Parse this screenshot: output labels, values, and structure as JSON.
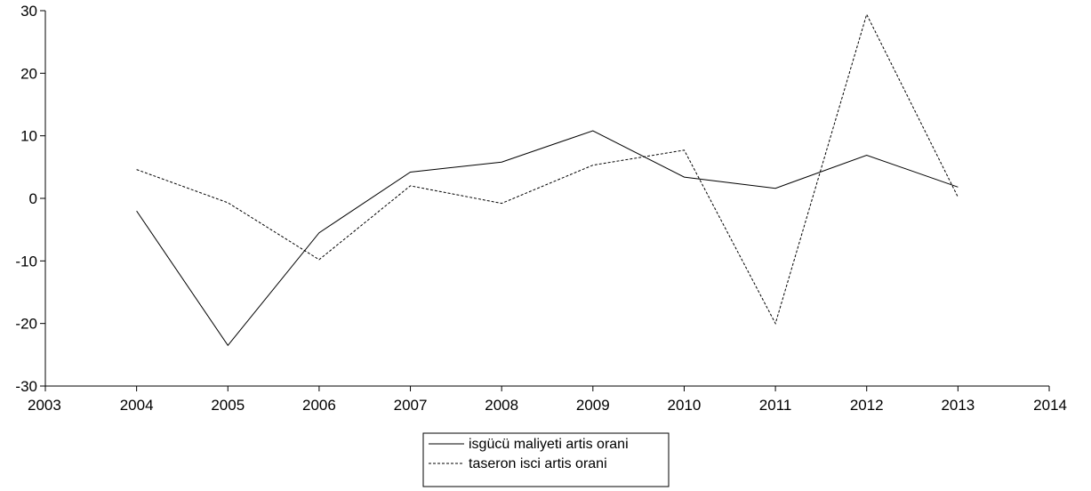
{
  "chart_data": {
    "type": "line",
    "title": "",
    "xlabel": "",
    "ylabel": "",
    "xlim": [
      2003,
      2014
    ],
    "ylim": [
      -30,
      30
    ],
    "x_ticks": [
      2003,
      2004,
      2005,
      2006,
      2007,
      2008,
      2009,
      2010,
      2011,
      2012,
      2013,
      2014
    ],
    "y_ticks": [
      -30,
      -20,
      -10,
      0,
      10,
      20,
      30
    ],
    "grid": false,
    "legend_position": "bottom-center",
    "series": [
      {
        "name": "isgücü maliyeti artis orani",
        "style": "solid",
        "color": "#000000",
        "x": [
          2004,
          2005,
          2006,
          2007,
          2008,
          2009,
          2010,
          2011,
          2012,
          2013
        ],
        "y": [
          -2,
          -23.5,
          -5.5,
          4.2,
          5.8,
          10.8,
          3.4,
          1.6,
          6.9,
          1.8
        ]
      },
      {
        "name": "taseron isci artis orani",
        "style": "dashed",
        "color": "#000000",
        "x": [
          2004,
          2005,
          2006,
          2007,
          2008,
          2009,
          2010,
          2011,
          2012,
          2013
        ],
        "y": [
          4.6,
          -0.7,
          -9.8,
          2.0,
          -0.8,
          5.3,
          7.7,
          -20.0,
          29.4,
          0.2
        ]
      }
    ]
  }
}
